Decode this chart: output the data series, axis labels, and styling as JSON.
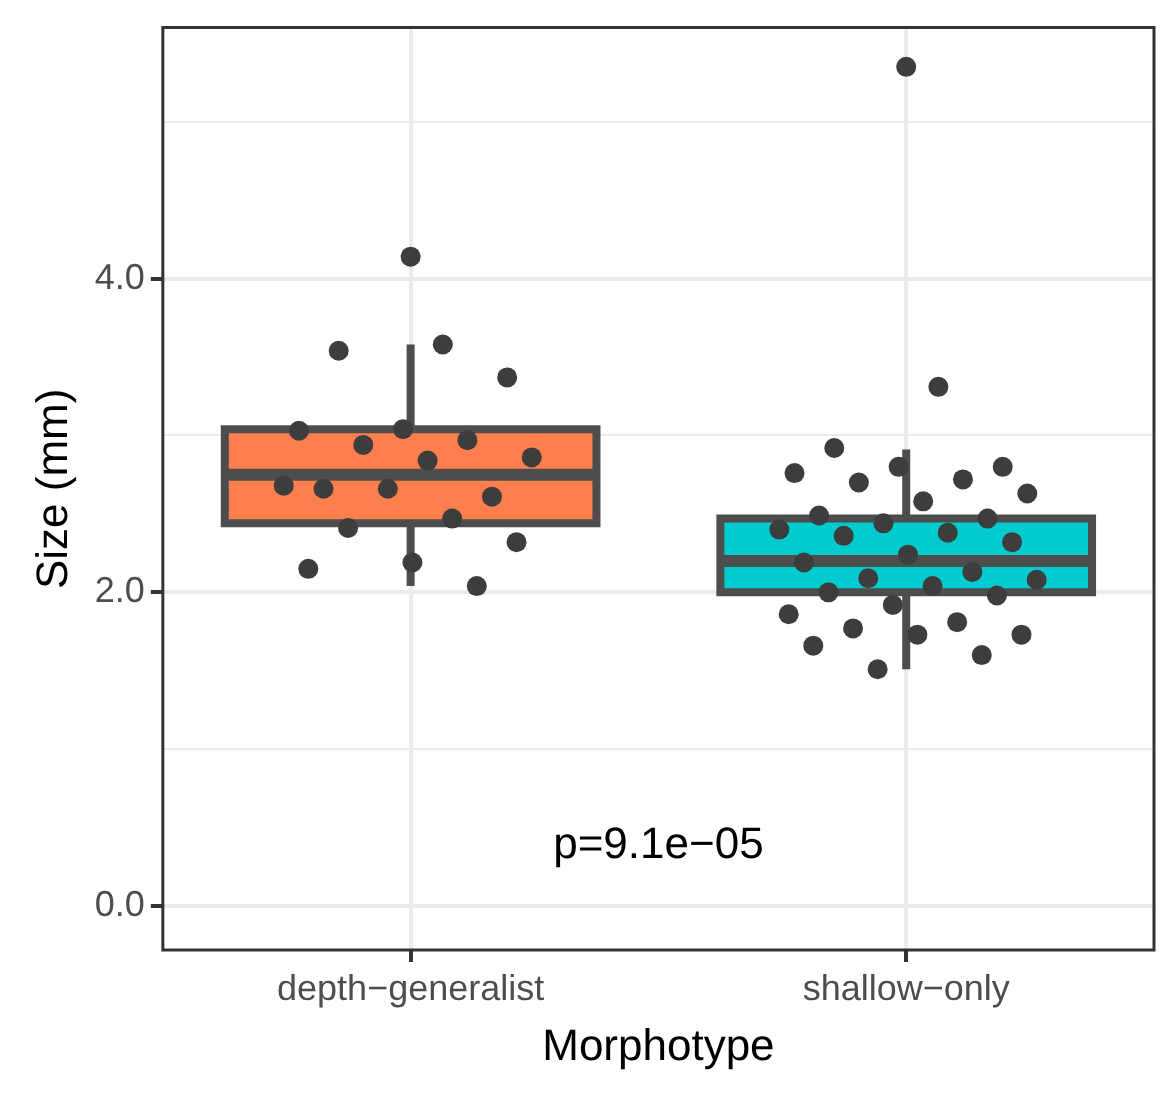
{
  "chart_data": {
    "type": "box",
    "xlabel": "Morphotype",
    "ylabel": "Size (mm)",
    "categories": [
      "depth−generalist",
      "shallow−only"
    ],
    "colors": [
      "#fc7f4d",
      "#00cccf"
    ],
    "boxes": [
      {
        "low": 2.04,
        "q1": 2.44,
        "median": 2.75,
        "q3": 3.04,
        "high": 3.58,
        "outliers": [
          4.14
        ]
      },
      {
        "low": 1.51,
        "q1": 2.0,
        "median": 2.2,
        "q3": 2.47,
        "high": 2.91,
        "outliers": [
          5.35
        ]
      }
    ],
    "series": [
      {
        "type": "scatter",
        "color": "#3d3d3d",
        "x": [
          "depth−generalist",
          "depth−generalist",
          "depth−generalist",
          "depth−generalist",
          "depth−generalist",
          "depth−generalist",
          "depth−generalist",
          "depth−generalist",
          "depth−generalist",
          "depth−generalist",
          "depth−generalist",
          "depth−generalist",
          "depth−generalist",
          "depth−generalist",
          "depth−generalist",
          "depth−generalist",
          "depth−generalist",
          "depth−generalist",
          "depth−generalist",
          "shallow−only",
          "shallow−only",
          "shallow−only",
          "shallow−only",
          "shallow−only",
          "shallow−only",
          "shallow−only",
          "shallow−only",
          "shallow−only",
          "shallow−only",
          "shallow−only",
          "shallow−only",
          "shallow−only",
          "shallow−only",
          "shallow−only",
          "shallow−only",
          "shallow−only",
          "shallow−only",
          "shallow−only",
          "shallow−only",
          "shallow−only",
          "shallow−only",
          "shallow−only",
          "shallow−only",
          "shallow−only",
          "shallow−only",
          "shallow−only",
          "shallow−only",
          "shallow−only",
          "shallow−only",
          "shallow−only",
          "shallow−only",
          "shallow−only"
        ],
        "values": [
          3.58,
          3.54,
          3.37,
          3.04,
          3.03,
          2.97,
          2.94,
          2.86,
          2.84,
          2.66,
          2.61,
          2.66,
          2.68,
          2.47,
          2.41,
          2.32,
          2.19,
          2.15,
          2.04,
          3.31,
          2.92,
          2.8,
          2.8,
          2.76,
          2.72,
          2.7,
          2.63,
          2.58,
          2.49,
          2.47,
          2.44,
          2.4,
          2.38,
          2.36,
          2.32,
          2.24,
          2.19,
          2.13,
          2.09,
          2.08,
          2.04,
          2.0,
          1.98,
          1.92,
          1.86,
          1.81,
          1.77,
          1.73,
          1.73,
          1.66,
          1.6,
          1.51
        ]
      }
    ],
    "ylim": [
      -0.28,
      5.6
    ],
    "yticks": [
      {
        "value": 0,
        "label": "0.0"
      },
      {
        "value": 1,
        "label": null
      },
      {
        "value": 2,
        "label": "2.0"
      },
      {
        "value": 3,
        "label": null
      },
      {
        "value": 4,
        "label": "4.0"
      },
      {
        "value": 5,
        "label": null
      }
    ],
    "grid": true,
    "legend": false,
    "marker": "circle",
    "annotations": [
      "p=9.1e−05"
    ]
  }
}
